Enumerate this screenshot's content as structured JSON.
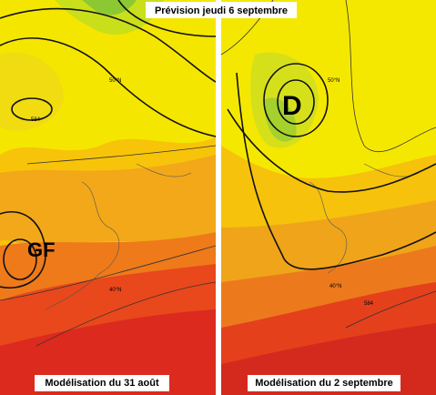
{
  "title": "Prévision jeudi 6 septembre",
  "panels": [
    {
      "caption": "Modélisation du 31 août",
      "system": "GF",
      "contour": "584",
      "lat_labels": [
        "50°N",
        "40°N"
      ]
    },
    {
      "caption": "Modélisation du 2 septembre",
      "system": "D",
      "contour": "584",
      "lat_labels": [
        "50°N",
        "40°N"
      ]
    }
  ]
}
